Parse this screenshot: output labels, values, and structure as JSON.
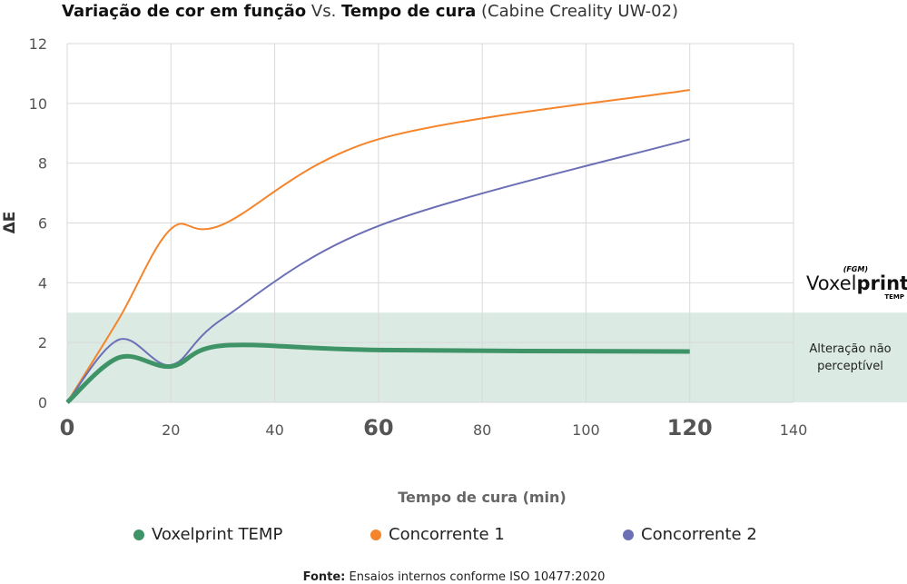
{
  "chart_data": {
    "type": "line",
    "title": {
      "part1": "Variação de cor em função",
      "part2": "Vs.",
      "part3": "Tempo de cura",
      "part4": "(Cabine Creality UW-02)"
    },
    "xlabel": "Tempo de cura (min)",
    "ylabel": "ΔE",
    "xlim": [
      0,
      140
    ],
    "ylim": [
      0,
      12
    ],
    "xticks": [
      0,
      20,
      40,
      60,
      80,
      100,
      120,
      140
    ],
    "yticks": [
      0,
      2,
      4,
      6,
      8,
      10,
      12
    ],
    "grid": true,
    "legend_position": "bottom",
    "series": [
      {
        "name": "Voxelprint TEMP",
        "color": "#3e9467",
        "x": [
          0,
          10,
          20,
          30,
          60,
          120
        ],
        "y": [
          0,
          1.5,
          1.2,
          1.9,
          1.75,
          1.7
        ]
      },
      {
        "name": "Concorrente 1",
        "color": "#f5842a",
        "x": [
          0,
          10,
          20,
          30,
          60,
          120
        ],
        "y": [
          0,
          2.8,
          5.8,
          5.95,
          8.8,
          10.45
        ]
      },
      {
        "name": "Concorrente 2",
        "color": "#6b6fb5",
        "x": [
          0,
          10,
          20,
          30,
          60,
          120
        ],
        "y": [
          0,
          2.1,
          1.25,
          2.8,
          5.9,
          8.8
        ]
      }
    ],
    "band": {
      "from": 0,
      "to": 3,
      "color": "#dbeae3",
      "label": "Alteração não perceptível"
    },
    "source": {
      "label": "Fonte:",
      "text": "Ensaios internos conforme ISO 10477:2020"
    }
  },
  "brand": {
    "logo": "FGM",
    "name": "Voxelprint",
    "sub": "TEMP"
  }
}
